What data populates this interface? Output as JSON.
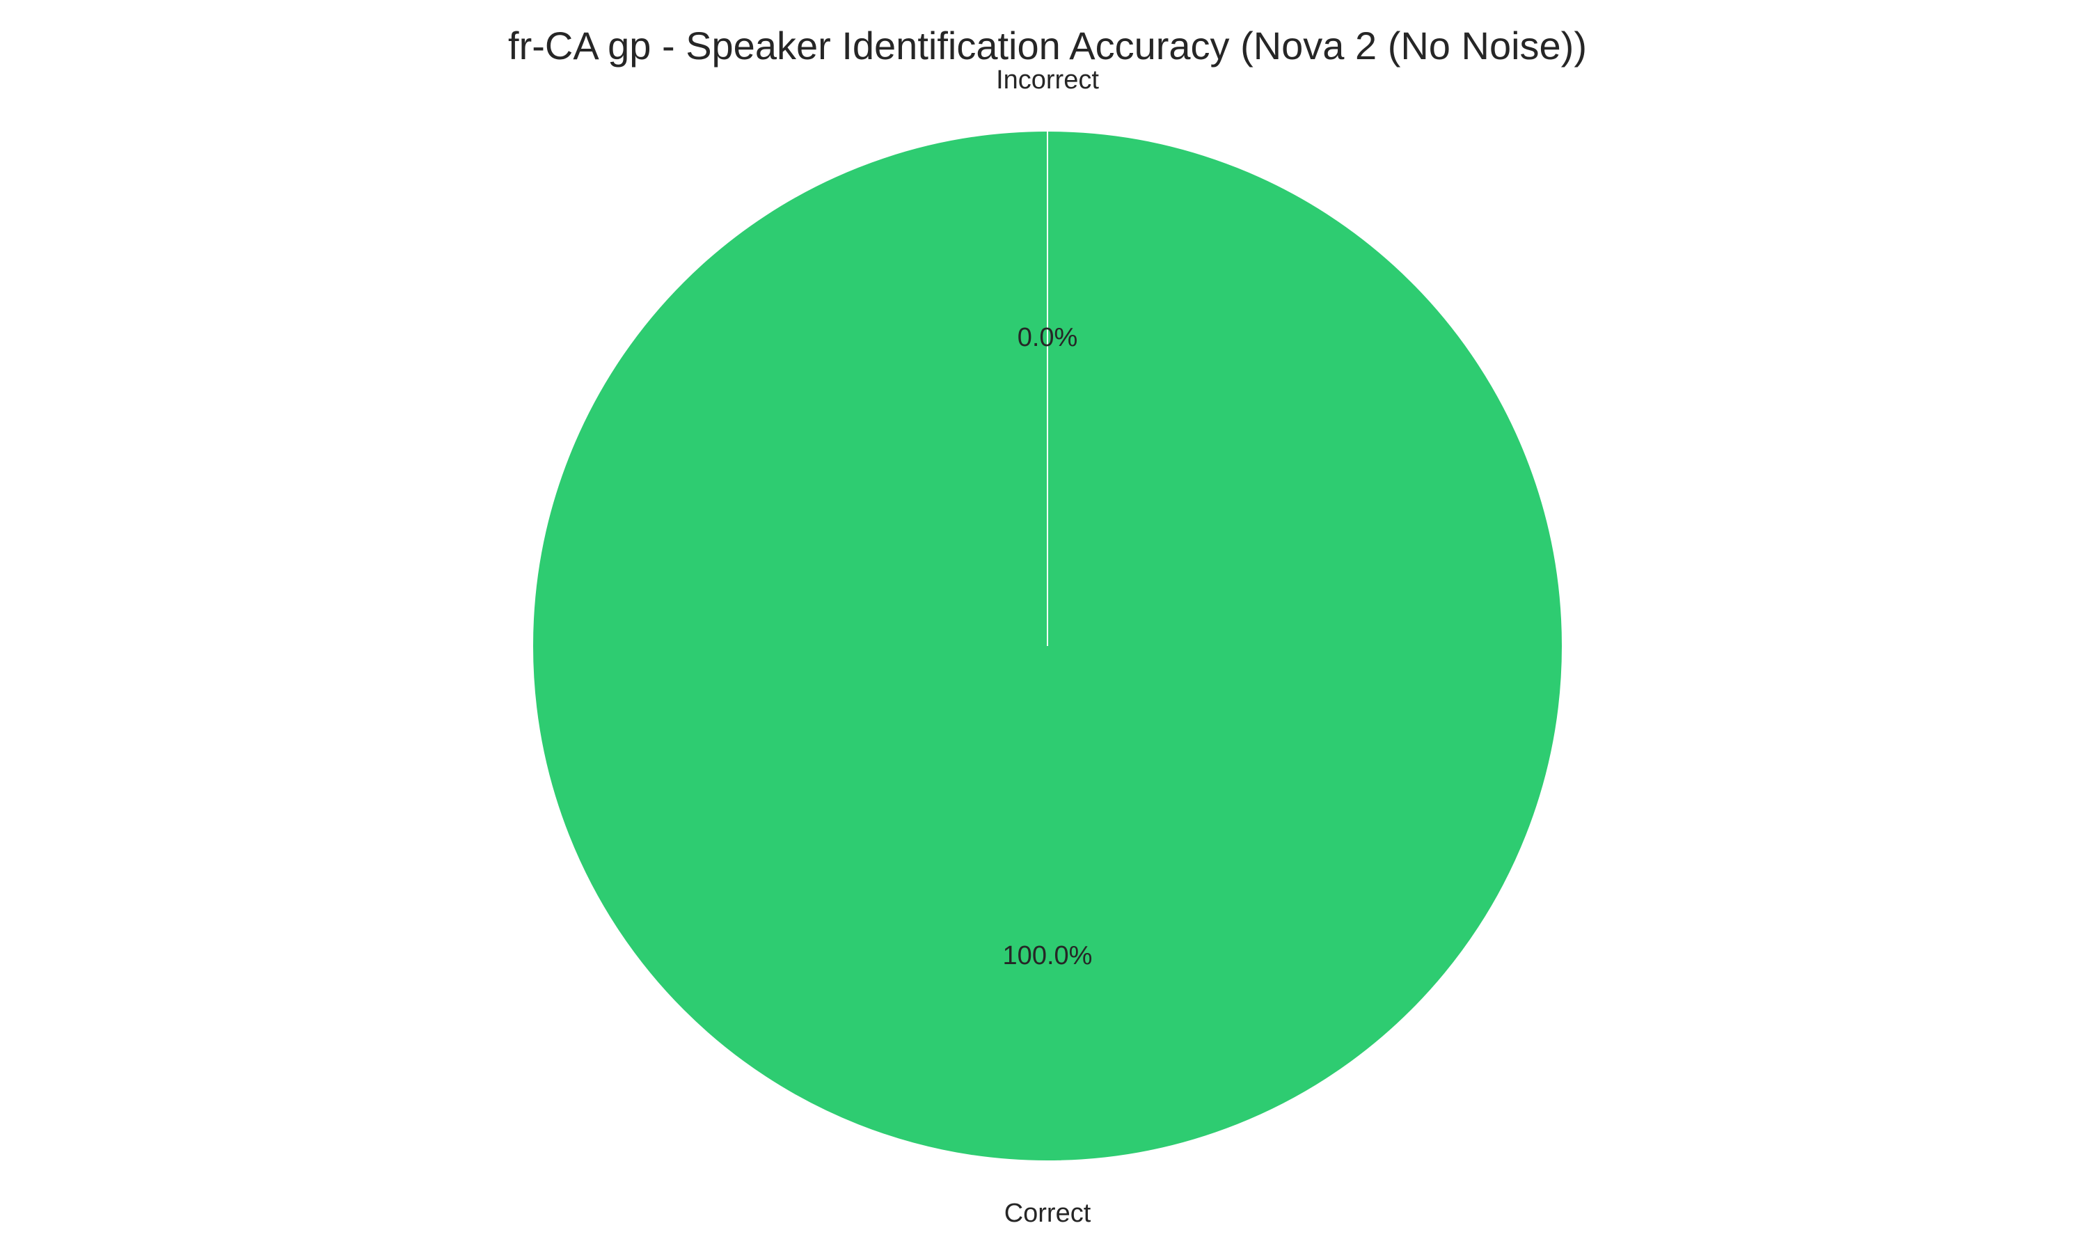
{
  "chart_data": {
    "type": "pie",
    "title": "fr-CA gp - Speaker Identification Accuracy (Nova 2 (No Noise))",
    "slices": [
      {
        "label": "Correct",
        "value": 100.0,
        "pct_label": "100.0%",
        "color": "#2ecc71"
      },
      {
        "label": "Incorrect",
        "value": 0.0,
        "pct_label": "0.0%",
        "color": "#e74c3c"
      }
    ],
    "start_angle": "top (90°)",
    "direction": "counter-clockwise",
    "edge_color": "#ffffff"
  }
}
